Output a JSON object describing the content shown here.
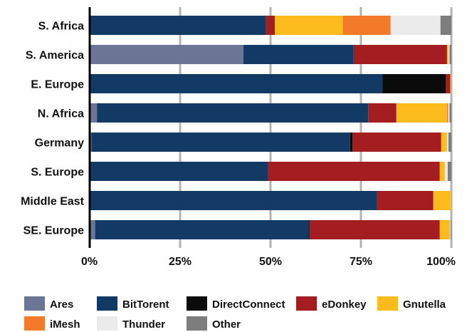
{
  "chart_data": {
    "type": "bar",
    "orientation": "horizontal",
    "stacked": true,
    "percent": true,
    "categories": [
      "S. Africa",
      "S. America",
      "E. Europe",
      "N. Africa",
      "Germany",
      "S. Europe",
      "Middle East",
      "SE. Europe"
    ],
    "series": [
      {
        "name": "Ares",
        "color": "#6b7596",
        "values": [
          0,
          42.5,
          0,
          2,
          0.5,
          0,
          0,
          1.5
        ]
      },
      {
        "name": "BitTorent",
        "color": "#133a65",
        "values": [
          48.7,
          30.5,
          81,
          75,
          71.5,
          49.3,
          79.5,
          59
        ]
      },
      {
        "name": "DirectConnect",
        "color": "#0b0b0b",
        "values": [
          0,
          0,
          17.5,
          0,
          0.7,
          0,
          0,
          0.3
        ]
      },
      {
        "name": "eDonkey",
        "color": "#a31d21",
        "values": [
          2.5,
          25.8,
          1.2,
          7.8,
          24.5,
          47.5,
          15.5,
          36
        ]
      },
      {
        "name": "Gnutella",
        "color": "#fbbb1c",
        "values": [
          18.8,
          0.4,
          0.3,
          14,
          1.6,
          1.4,
          5,
          2.8
        ]
      },
      {
        "name": "iMesh",
        "color": "#f27a28",
        "values": [
          13.2,
          0,
          0,
          0.3,
          0,
          0,
          0,
          0
        ]
      },
      {
        "name": "Thunder",
        "color": "#ebebeb",
        "values": [
          13.8,
          0.3,
          0,
          0.4,
          0.4,
          0.8,
          0,
          0.2
        ]
      },
      {
        "name": "Other",
        "color": "#7d7d7d",
        "values": [
          3,
          0.5,
          0,
          0.5,
          0.8,
          1,
          0,
          0.2
        ]
      }
    ],
    "xlim": [
      0,
      100
    ],
    "xticks": [
      "0%",
      "25%",
      "50%",
      "75%",
      "100%"
    ],
    "grid": true,
    "legend_position": "bottom"
  }
}
